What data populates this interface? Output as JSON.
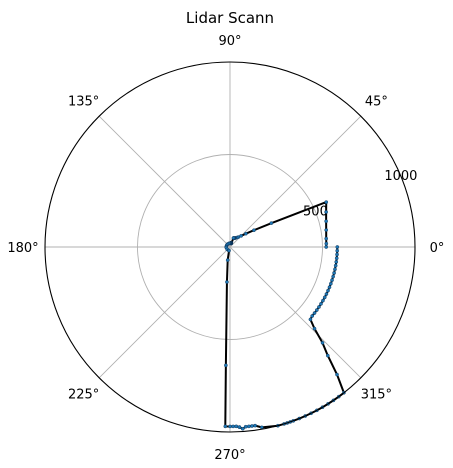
{
  "chart_data": {
    "type": "scatter",
    "projection": "polar",
    "title": "Lidar Scann",
    "theta_unit": "degrees",
    "theta_ticks": [
      "0°",
      "45°",
      "90°",
      "135°",
      "180°",
      "225°",
      "270°",
      "315°"
    ],
    "r_ticks": [
      "500",
      "1000"
    ],
    "r_tick_values": [
      500,
      1000
    ],
    "r_label_angle_deg": 22.5,
    "rlim": [
      0,
      1000
    ],
    "grid": true,
    "colors": {
      "line": "#000000",
      "points": "#1f77b4",
      "grid": "#b0b0b0",
      "frame": "#000000"
    },
    "series": [
      {
        "x": [
          0,
          2,
          5,
          10,
          15,
          20,
          25,
          30,
          35,
          40,
          45,
          50,
          55,
          60,
          62,
          65,
          66,
          67,
          68,
          69,
          70,
          71,
          72,
          73,
          73,
          74,
          75,
          76,
          77,
          78,
          79,
          80,
          81,
          82,
          83,
          84,
          85,
          86,
          87,
          88,
          89,
          90,
          92,
          95,
          100,
          110,
          130,
          150,
          170,
          180,
          190,
          220,
          250,
          255,
          260,
          265,
          268,
          268.5,
          270,
          271,
          272,
          273,
          273,
          274,
          275,
          276,
          277,
          278,
          280,
          285,
          287,
          288,
          289,
          290,
          292,
          294,
          296,
          298,
          300,
          302,
          304,
          306,
          308,
          310,
          312,
          314,
          316,
          318,
          320,
          322,
          324,
          326,
          328,
          330,
          332,
          334,
          336,
          338,
          340,
          342,
          344,
          346,
          348,
          350,
          352,
          354,
          356,
          358,
          360
        ],
        "y": [
          520,
          521,
          522,
          528,
          538,
          553,
          574,
          258,
          158,
          112,
          85,
          70,
          62,
          56,
          54,
          53,
          53,
          53,
          52,
          52,
          20,
          22,
          24,
          23,
          21,
          21,
          21,
          21,
          21,
          21,
          21,
          21,
          21,
          21,
          21,
          21,
          20,
          20,
          20,
          20,
          20,
          20,
          20,
          20,
          20,
          20,
          20,
          20,
          20,
          20,
          20,
          20,
          20,
          20,
          72,
          190,
          640,
          970,
          970,
          970,
          970,
          975,
          975,
          985,
          975,
          975,
          975,
          975,
          990,
          1000,
          1000,
          1000,
          1000,
          1000,
          1000,
          1000,
          1000,
          1000,
          1000,
          1000,
          1000,
          1000,
          1000,
          900,
          790,
          720,
          635,
          585,
          580,
          580,
          580,
          580,
          580,
          580,
          580,
          580,
          580,
          580,
          580,
          580,
          580,
          580,
          580,
          580,
          580,
          580,
          580,
          580,
          580
        ]
      }
    ]
  }
}
